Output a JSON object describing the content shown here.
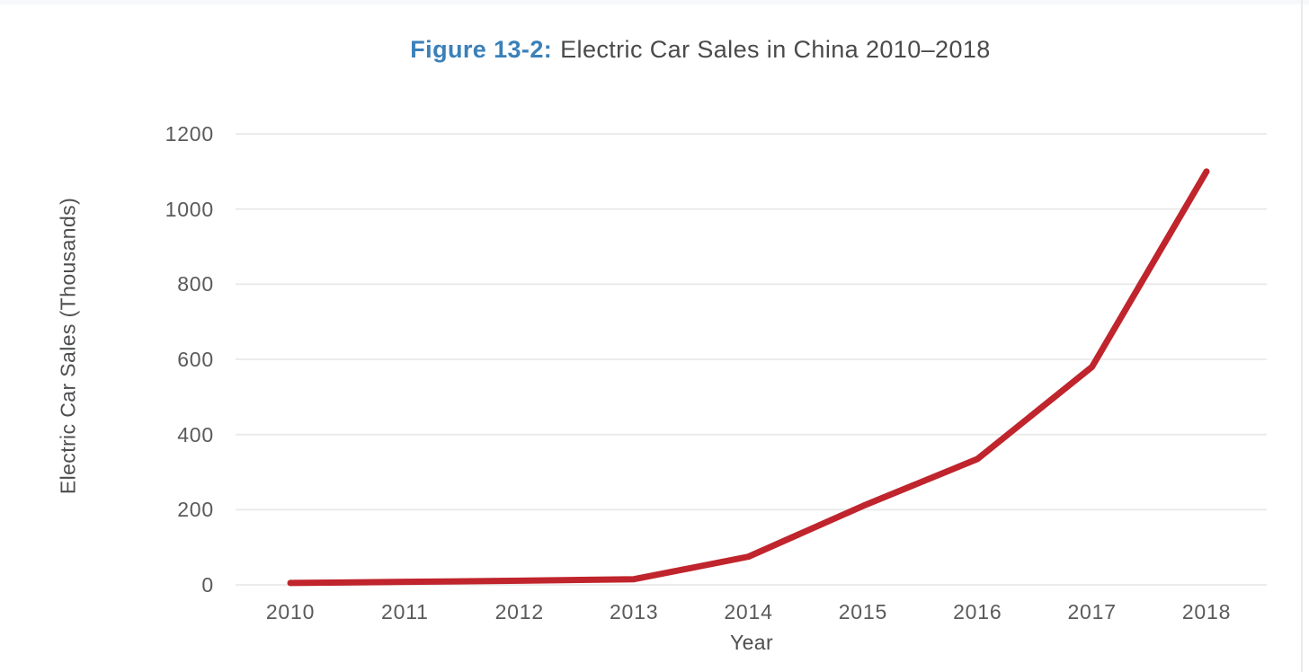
{
  "page": {
    "title_prefix": "Figure 13-2:",
    "title_main": "Electric Car Sales in China 2010–2018",
    "accent_blue": "#3a80b9",
    "title_text_color": "#4a4a4a"
  },
  "chart_data": {
    "type": "line",
    "title": "Figure 13-2: Electric Car Sales in China 2010–2018",
    "x": [
      2010,
      2011,
      2012,
      2013,
      2014,
      2015,
      2016,
      2017,
      2018
    ],
    "series": [
      {
        "name": "Electric car sales",
        "values": [
          5,
          8,
          11,
          15,
          75,
          210,
          335,
          580,
          1100
        ]
      }
    ],
    "xlabel": "Year",
    "ylabel": "Electric Car Sales (Thousands)",
    "ylim": [
      0,
      1200
    ],
    "yticks": [
      0,
      200,
      400,
      600,
      800,
      1000,
      1200
    ],
    "xticks": [
      "2010",
      "2011",
      "2012",
      "2013",
      "2014",
      "2015",
      "2016",
      "2017",
      "2018"
    ],
    "grid": "horizontal-only",
    "legend": "none",
    "line_color": "#c0242c",
    "gridline_color": "#e9e9e9",
    "tick_label_color": "#595a5c"
  }
}
